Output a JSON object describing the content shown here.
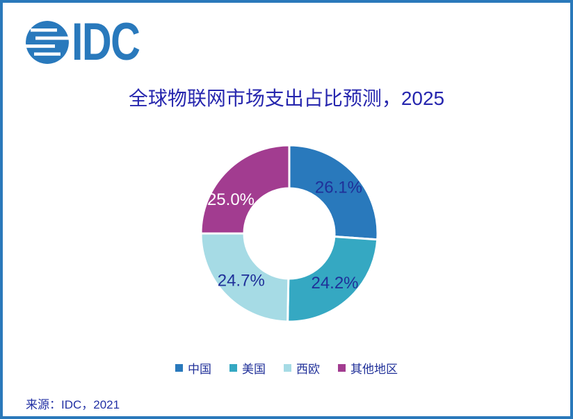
{
  "page": {
    "background": "#ffffff",
    "border_color": "#2A79BA"
  },
  "logo": {
    "text": "IDC",
    "color": "#2979BC"
  },
  "title": {
    "text": "全球物联网市场支出占比预测，2025",
    "color": "#2626AE"
  },
  "source": {
    "text": "来源：IDC，2021"
  },
  "chart_data": {
    "type": "pie",
    "subtype": "donut",
    "title": "全球物联网市场支出占比预测，2025",
    "categories": [
      "中国",
      "美国",
      "西欧",
      "其他地区"
    ],
    "values": [
      26.1,
      24.2,
      24.7,
      25.0
    ],
    "unit": "%",
    "labels": [
      "26.1%",
      "24.2%",
      "24.7%",
      "25.0%"
    ],
    "colors": [
      "#2979BC",
      "#35A8C2",
      "#A6DBE5",
      "#A23C90"
    ],
    "label_colors": [
      "#1F3099",
      "#1F3099",
      "#1F3099",
      "#FFFFFF"
    ],
    "start_angle_deg": 0,
    "direction": "clockwise",
    "legend_position": "bottom",
    "label_position": "inside"
  }
}
